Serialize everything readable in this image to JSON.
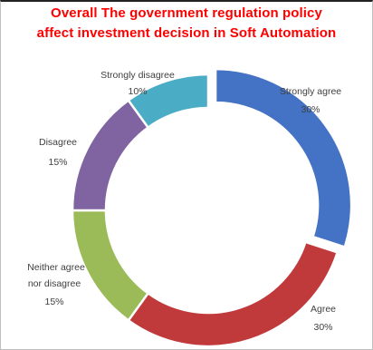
{
  "chart_data": {
    "type": "pie",
    "style": "doughnut",
    "title_lines": [
      "Overall The government regulation policy",
      "affect investment decision in Soft Automation"
    ],
    "slices": [
      {
        "label": "Strongly agree",
        "value": 30,
        "value_label": "30%",
        "color": "#4472c4",
        "exploded": true
      },
      {
        "label": "Agree",
        "value": 30,
        "value_label": "30%",
        "color": "#c0393b"
      },
      {
        "label": "Neither agree nor disagree",
        "value": 15,
        "value_label": "15%",
        "color": "#9bbb59"
      },
      {
        "label": "Disagree",
        "value": 15,
        "value_label": "15%",
        "color": "#8064a2"
      },
      {
        "label": "Strongly disagree",
        "value": 10,
        "value_label": "10%",
        "color": "#4bacc6"
      }
    ]
  }
}
